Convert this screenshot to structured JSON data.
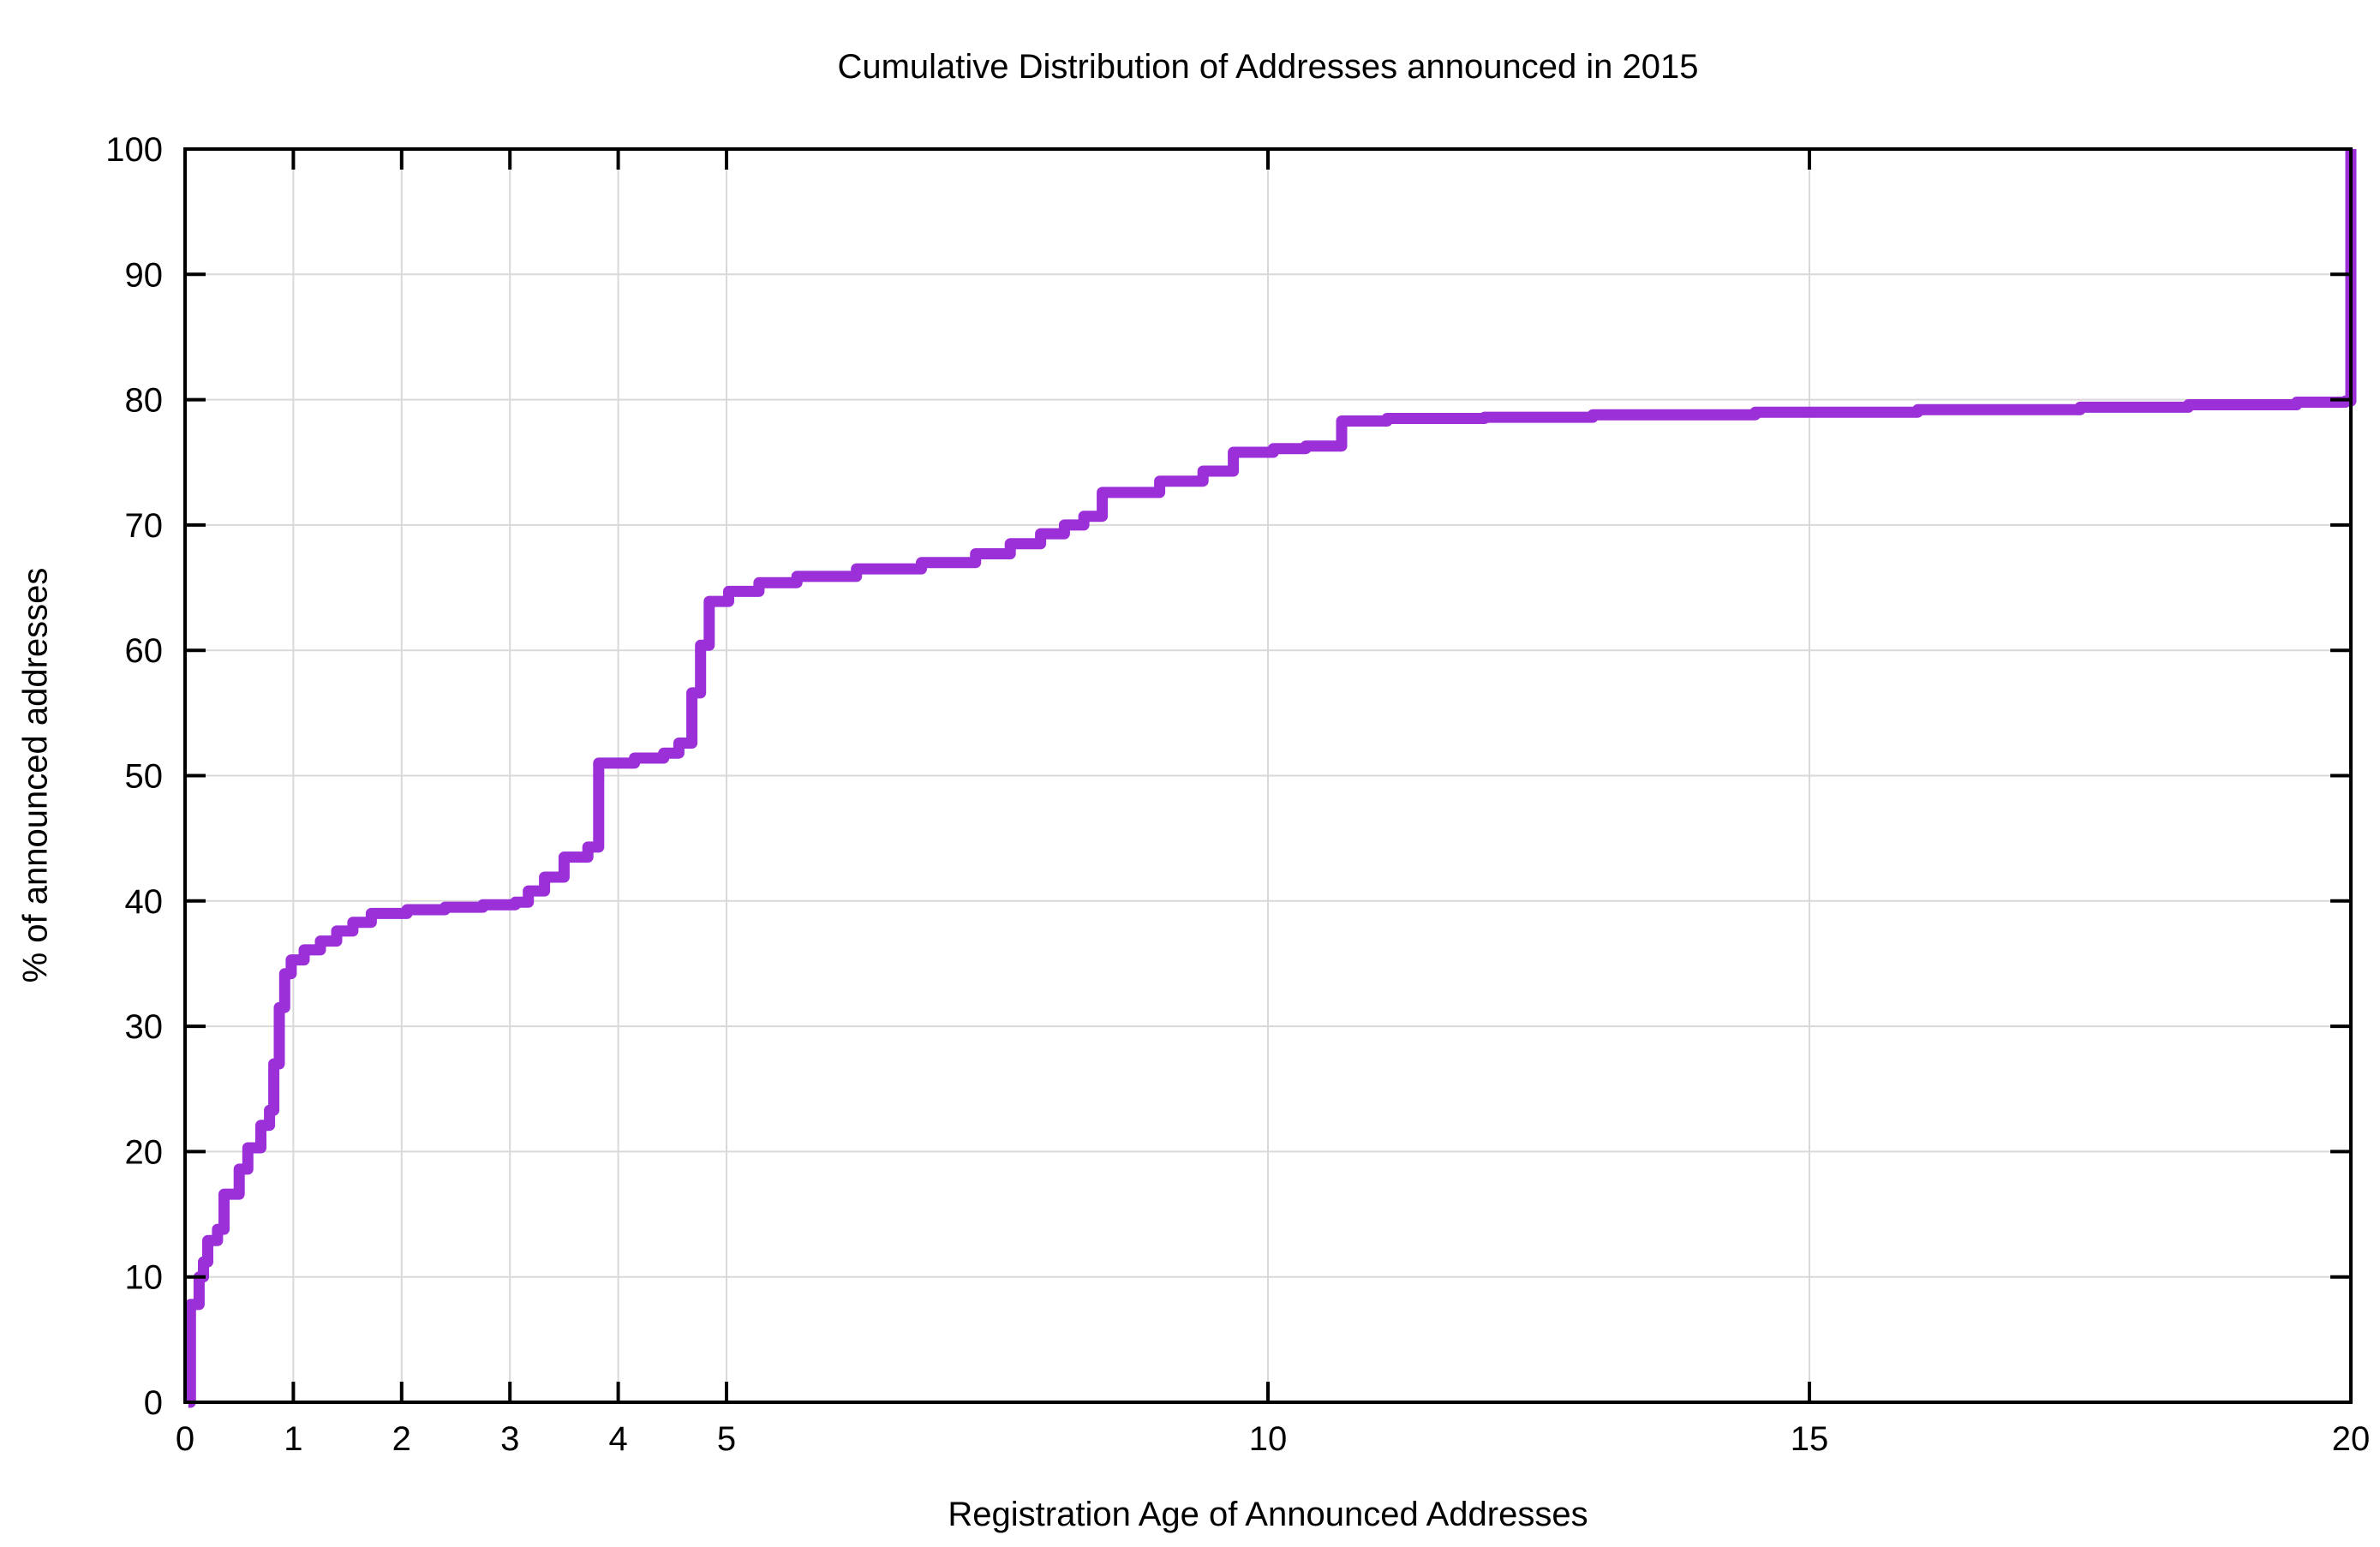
{
  "chart_data": {
    "type": "line",
    "subtype": "step-cdf",
    "title": "Cumulative Distribution of Addresses announced in 2015",
    "xlabel": "Registration Age of Announced Addresses",
    "ylabel": "% of announced addresses",
    "xlim": [
      0,
      20
    ],
    "ylim": [
      0,
      100
    ],
    "x_ticks": [
      0,
      1,
      2,
      3,
      4,
      5,
      10,
      15,
      20
    ],
    "y_ticks": [
      0,
      10,
      20,
      30,
      40,
      50,
      60,
      70,
      80,
      90,
      100
    ],
    "grid": true,
    "legend_position": "none",
    "line_color": "#9b30d9",
    "line_width": 13,
    "points": [
      [
        0.03,
        0
      ],
      [
        0.05,
        7.8
      ],
      [
        0.13,
        10.0
      ],
      [
        0.17,
        11.2
      ],
      [
        0.21,
        12.9
      ],
      [
        0.3,
        13.8
      ],
      [
        0.36,
        16.6
      ],
      [
        0.5,
        18.6
      ],
      [
        0.58,
        20.3
      ],
      [
        0.7,
        22.1
      ],
      [
        0.78,
        23.3
      ],
      [
        0.82,
        27.0
      ],
      [
        0.87,
        31.5
      ],
      [
        0.92,
        34.2
      ],
      [
        0.98,
        35.3
      ],
      [
        1.1,
        36.1
      ],
      [
        1.25,
        36.8
      ],
      [
        1.4,
        37.6
      ],
      [
        1.55,
        38.3
      ],
      [
        1.72,
        39.0
      ],
      [
        2.05,
        39.3
      ],
      [
        2.4,
        39.5
      ],
      [
        2.75,
        39.7
      ],
      [
        3.05,
        39.9
      ],
      [
        3.17,
        40.8
      ],
      [
        3.32,
        41.9
      ],
      [
        3.5,
        43.5
      ],
      [
        3.72,
        44.3
      ],
      [
        3.82,
        51.0
      ],
      [
        4.15,
        51.4
      ],
      [
        4.42,
        51.8
      ],
      [
        4.56,
        52.6
      ],
      [
        4.68,
        56.6
      ],
      [
        4.76,
        60.4
      ],
      [
        4.84,
        63.9
      ],
      [
        5.02,
        64.7
      ],
      [
        5.3,
        65.4
      ],
      [
        5.65,
        65.9
      ],
      [
        6.2,
        66.5
      ],
      [
        6.8,
        67.0
      ],
      [
        7.3,
        67.7
      ],
      [
        7.62,
        68.5
      ],
      [
        7.9,
        69.3
      ],
      [
        8.12,
        70.0
      ],
      [
        8.3,
        70.7
      ],
      [
        8.47,
        72.6
      ],
      [
        9.0,
        73.5
      ],
      [
        9.4,
        74.3
      ],
      [
        9.68,
        75.8
      ],
      [
        10.05,
        76.1
      ],
      [
        10.35,
        76.3
      ],
      [
        10.68,
        78.3
      ],
      [
        11.1,
        78.5
      ],
      [
        12.0,
        78.6
      ],
      [
        13.0,
        78.8
      ],
      [
        14.5,
        79.0
      ],
      [
        16.0,
        79.2
      ],
      [
        17.5,
        79.4
      ],
      [
        18.5,
        79.6
      ],
      [
        19.5,
        79.8
      ],
      [
        19.95,
        79.9
      ],
      [
        20.0,
        100.0
      ]
    ]
  },
  "colors": {
    "background": "#ffffff",
    "grid": "#d9d9d9",
    "axis": "#000000",
    "text": "#000000",
    "line": "#9b30d9"
  },
  "layout_values": {
    "tick_font_size": 40
  }
}
